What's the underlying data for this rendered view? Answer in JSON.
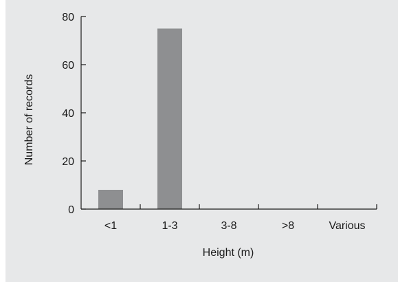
{
  "chart_data": {
    "type": "bar",
    "title": "",
    "xlabel": "Height (m)",
    "ylabel": "Number of records",
    "categories": [
      "<1",
      "1-3",
      "3-8",
      ">8",
      "Various"
    ],
    "values": [
      8,
      75,
      0,
      0,
      0
    ],
    "ylim": [
      0,
      80
    ],
    "yticks": [
      0,
      20,
      40,
      60,
      80
    ],
    "ytick_labels": [
      "0",
      "20",
      "40",
      "60",
      "80"
    ],
    "grid": false,
    "legend": "none",
    "colors": {
      "bar": "#8e8f91",
      "background": "#e7e8e9",
      "axis": "#1a1a1a"
    }
  }
}
